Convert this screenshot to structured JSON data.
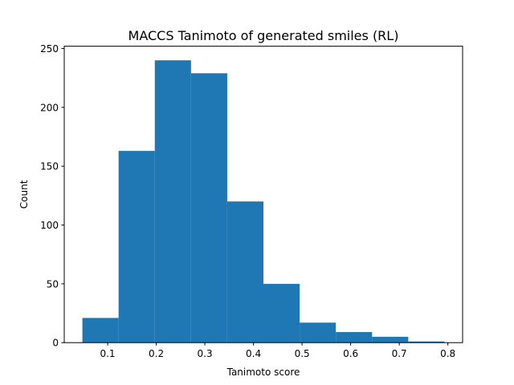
{
  "chart_data": {
    "type": "bar",
    "title": "MACCS Tanimoto of generated smiles (RL)",
    "xlabel": "Tanimoto score",
    "ylabel": "Count",
    "bin_edges": [
      0.048,
      0.1225,
      0.197,
      0.2715,
      0.346,
      0.4205,
      0.495,
      0.5695,
      0.644,
      0.7185,
      0.793
    ],
    "values": [
      21,
      163,
      240,
      229,
      120,
      50,
      17,
      9,
      5,
      1
    ],
    "color": "#1f77b4",
    "xlim": [
      0.0107,
      0.8303
    ],
    "ylim": [
      0,
      252
    ],
    "xticks": [
      {
        "value": 0.1,
        "label": "0.1"
      },
      {
        "value": 0.2,
        "label": "0.2"
      },
      {
        "value": 0.3,
        "label": "0.3"
      },
      {
        "value": 0.4,
        "label": "0.4"
      },
      {
        "value": 0.5,
        "label": "0.5"
      },
      {
        "value": 0.6,
        "label": "0.6"
      },
      {
        "value": 0.7,
        "label": "0.7"
      },
      {
        "value": 0.8,
        "label": "0.8"
      }
    ],
    "yticks": [
      {
        "value": 0,
        "label": "0"
      },
      {
        "value": 50,
        "label": "50"
      },
      {
        "value": 100,
        "label": "100"
      },
      {
        "value": 150,
        "label": "150"
      },
      {
        "value": 200,
        "label": "200"
      },
      {
        "value": 250,
        "label": "250"
      }
    ],
    "grid": false,
    "legend": "none"
  }
}
